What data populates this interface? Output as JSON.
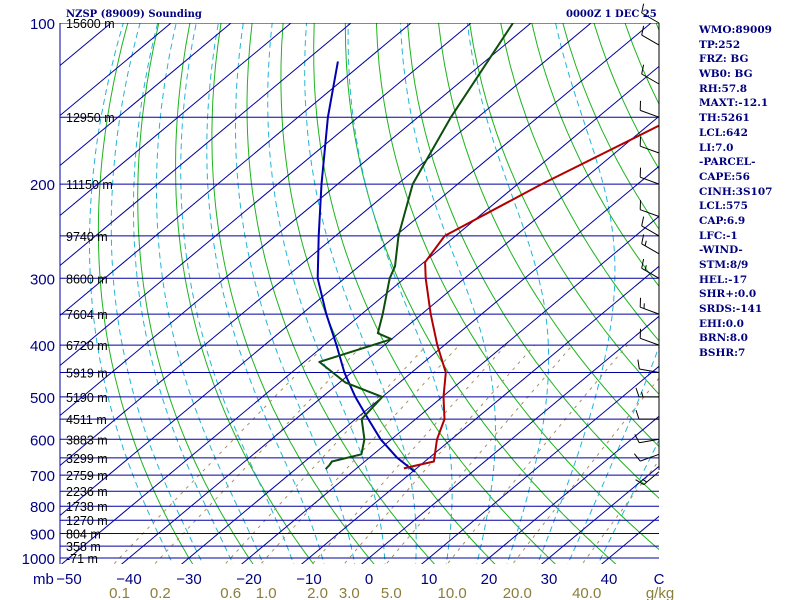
{
  "header": {
    "station": "NZSP (89009) Sounding",
    "time": "0000Z  1 DEC 25"
  },
  "stats": [
    "WMO:89009",
    "TP:252",
    "FRZ: BG",
    "WB0: BG",
    "RH:57.8",
    "MAXT:-12.1",
    "TH:5261",
    "LCL:642",
    "LI:7.0",
    "-PARCEL-",
    "CAPE:56",
    "CINH:3S107",
    "LCL:575",
    "CAP:6.9",
    "LFC:-1",
    "-WIND-",
    "STM:8/9",
    "HEL:-17",
    "SHR+:0.0",
    "SRDS:-141",
    "EHI:0.0",
    "BRN:8.0",
    "BSHR:7"
  ],
  "colors": {
    "isobar": "#0000a0",
    "isotherm": "#0000a0",
    "dry_adiabat": "#1db31d",
    "moist_adiabat": "#22b5d6",
    "mixing_ratio": "#a89060",
    "temperature": "#b20000",
    "dewpoint": "#0d4d0d",
    "parcel": "#0000b0",
    "axis_text": "#000080",
    "mixing_text": "#8b7d3a",
    "wind": "#000000"
  },
  "chart_data": {
    "type": "skew-t",
    "title": "NZSP (89009) Sounding",
    "xlabel": "C",
    "ylabel": "mb",
    "xlim": [
      -50,
      50
    ],
    "ylim": [
      1000,
      100
    ],
    "pressure_levels": [
      100,
      200,
      300,
      400,
      500,
      600,
      700,
      800,
      900,
      1000
    ],
    "temperature_ticks": [
      -50,
      -40,
      -30,
      -20,
      -10,
      0,
      10,
      20,
      30,
      40
    ],
    "mixing_ratio_labels": [
      "0.1",
      "0.2",
      "0.6",
      "1.0",
      "2.0",
      "3.0",
      "5.0",
      "10.0",
      "20.0",
      "40.0"
    ],
    "mixing_ratio_unit": "g/kg",
    "height_labels": [
      {
        "p": 100,
        "label": "15600 m"
      },
      {
        "p": 150,
        "label": "12950 m"
      },
      {
        "p": 200,
        "label": "11150 m"
      },
      {
        "p": 250,
        "label": "9740 m"
      },
      {
        "p": 300,
        "label": "8600 m"
      },
      {
        "p": 350,
        "label": "7604 m"
      },
      {
        "p": 400,
        "label": "6720 m"
      },
      {
        "p": 450,
        "label": "5919 m"
      },
      {
        "p": 500,
        "label": "5190 m"
      },
      {
        "p": 550,
        "label": "4511 m"
      },
      {
        "p": 600,
        "label": "3883 m"
      },
      {
        "p": 650,
        "label": "3299 m"
      },
      {
        "p": 700,
        "label": "2759 m"
      },
      {
        "p": 750,
        "label": "2236 m"
      },
      {
        "p": 800,
        "label": "1738 m"
      },
      {
        "p": 850,
        "label": "1270 m"
      },
      {
        "p": 900,
        "label": "804 m"
      },
      {
        "p": 950,
        "label": "358 m"
      },
      {
        "p": 1000,
        "label": "-71 m"
      }
    ],
    "temperature_profile": [
      {
        "p": 680,
        "t": -12.1
      },
      {
        "p": 670,
        "t": -10.4
      },
      {
        "p": 660,
        "t": -8.5
      },
      {
        "p": 600,
        "t": -12.4
      },
      {
        "p": 550,
        "t": -15.2
      },
      {
        "p": 500,
        "t": -19.8
      },
      {
        "p": 450,
        "t": -24.3
      },
      {
        "p": 400,
        "t": -31.2
      },
      {
        "p": 350,
        "t": -38.5
      },
      {
        "p": 300,
        "t": -46.5
      },
      {
        "p": 280,
        "t": -49.8
      },
      {
        "p": 250,
        "t": -51.8
      },
      {
        "p": 200,
        "t": -46.0
      },
      {
        "p": 150,
        "t": -37.0
      },
      {
        "p": 100,
        "t": -33.5
      }
    ],
    "dewpoint_profile": [
      {
        "p": 682,
        "t": -25.0
      },
      {
        "p": 670,
        "t": -25.2
      },
      {
        "p": 660,
        "t": -25.5
      },
      {
        "p": 640,
        "t": -22.0
      },
      {
        "p": 600,
        "t": -24.5
      },
      {
        "p": 550,
        "t": -29.0
      },
      {
        "p": 500,
        "t": -30.0
      },
      {
        "p": 470,
        "t": -39.0
      },
      {
        "p": 430,
        "t": -47.5
      },
      {
        "p": 390,
        "t": -40.0
      },
      {
        "p": 380,
        "t": -43.5
      },
      {
        "p": 350,
        "t": -46.5
      },
      {
        "p": 300,
        "t": -52.5
      },
      {
        "p": 285,
        "t": -54.0
      },
      {
        "p": 250,
        "t": -59.5
      },
      {
        "p": 200,
        "t": -67.5
      },
      {
        "p": 150,
        "t": -74.5
      },
      {
        "p": 100,
        "t": -83.0
      }
    ],
    "parcel_profile": [
      {
        "p": 690,
        "t": -9.6
      },
      {
        "p": 650,
        "t": -15.3
      },
      {
        "p": 600,
        "t": -21.8
      },
      {
        "p": 550,
        "t": -27.9
      },
      {
        "p": 500,
        "t": -34.5
      },
      {
        "p": 450,
        "t": -41.2
      },
      {
        "p": 400,
        "t": -48.0
      },
      {
        "p": 350,
        "t": -55.9
      },
      {
        "p": 300,
        "t": -64.5
      },
      {
        "p": 250,
        "t": -72.8
      },
      {
        "p": 200,
        "t": -82.7
      },
      {
        "p": 150,
        "t": -95.0
      },
      {
        "p": 118,
        "t": -104.5
      }
    ],
    "wind_barbs": [
      {
        "p": 690,
        "dir": 230,
        "spd": 15
      },
      {
        "p": 640,
        "dir": 250,
        "spd": 10
      },
      {
        "p": 600,
        "dir": 260,
        "spd": 10
      },
      {
        "p": 550,
        "dir": 270,
        "spd": 10
      },
      {
        "p": 500,
        "dir": 270,
        "spd": 15
      },
      {
        "p": 450,
        "dir": 280,
        "spd": 10
      },
      {
        "p": 400,
        "dir": 290,
        "spd": 10
      },
      {
        "p": 350,
        "dir": 290,
        "spd": 15
      },
      {
        "p": 300,
        "dir": 300,
        "spd": 15
      },
      {
        "p": 270,
        "dir": 300,
        "spd": 15
      },
      {
        "p": 250,
        "dir": 300,
        "spd": 10
      },
      {
        "p": 230,
        "dir": 290,
        "spd": 10
      },
      {
        "p": 200,
        "dir": 290,
        "spd": 10
      },
      {
        "p": 175,
        "dir": 290,
        "spd": 10
      },
      {
        "p": 150,
        "dir": 290,
        "spd": 10
      },
      {
        "p": 130,
        "dir": 300,
        "spd": 10
      },
      {
        "p": 110,
        "dir": 300,
        "spd": 10
      },
      {
        "p": 100,
        "dir": 300,
        "spd": 10
      }
    ],
    "grid": true
  }
}
